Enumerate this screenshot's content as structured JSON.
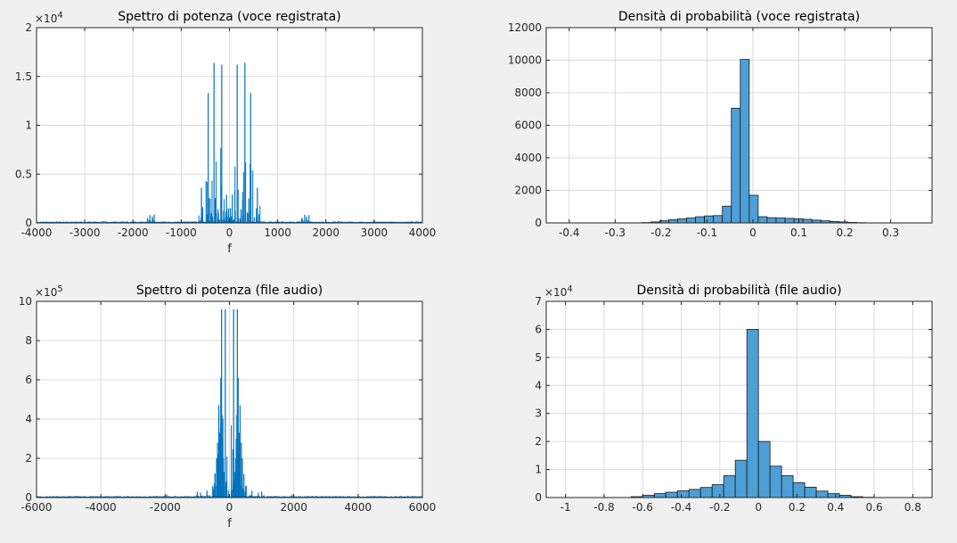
{
  "figure": {
    "background": "#f0f0f0",
    "axes_background": "#ffffff",
    "line_color": "#0072bd",
    "bar_face": "#4d9fd6",
    "bar_edge": "#1a1a1a",
    "grid_color": "#dcdcdc"
  },
  "chart_data": [
    {
      "id": "spectrum-voice",
      "type": "line",
      "title": "Spettro di potenza (voce registrata)",
      "xlabel": "f",
      "ylabel": "",
      "xlim": [
        -4000,
        4000
      ],
      "ylim": [
        0,
        20000
      ],
      "xticks": [
        -4000,
        -3000,
        -2000,
        -1000,
        0,
        1000,
        2000,
        3000,
        4000
      ],
      "yticks": [
        0,
        5000,
        10000,
        15000,
        20000
      ],
      "ytick_labels": [
        "0",
        "0.5",
        "1",
        "1.5",
        "2"
      ],
      "exponent_label": "×10",
      "exponent": "4",
      "grid": true,
      "peaks": [
        {
          "x": -1650,
          "y": 800
        },
        {
          "x": -1600,
          "y": 650
        },
        {
          "x": -1560,
          "y": 850
        },
        {
          "x": -1700,
          "y": 500
        },
        {
          "x": -580,
          "y": 3600
        },
        {
          "x": -560,
          "y": 1500
        },
        {
          "x": -440,
          "y": 13300
        },
        {
          "x": -400,
          "y": 2500
        },
        {
          "x": -320,
          "y": 16400
        },
        {
          "x": -280,
          "y": 2300
        },
        {
          "x": -240,
          "y": 1400
        },
        {
          "x": -160,
          "y": 16200
        },
        {
          "x": -120,
          "y": 1200
        },
        {
          "x": -60,
          "y": 2900
        },
        {
          "x": -20,
          "y": 1500
        },
        {
          "x": 20,
          "y": 1500
        },
        {
          "x": 60,
          "y": 2900
        },
        {
          "x": 120,
          "y": 1200
        },
        {
          "x": 160,
          "y": 16200
        },
        {
          "x": 240,
          "y": 1400
        },
        {
          "x": 280,
          "y": 2300
        },
        {
          "x": 320,
          "y": 16400
        },
        {
          "x": 400,
          "y": 2500
        },
        {
          "x": 440,
          "y": 13300
        },
        {
          "x": 560,
          "y": 1500
        },
        {
          "x": 580,
          "y": 3600
        },
        {
          "x": 1500,
          "y": 500
        },
        {
          "x": 1560,
          "y": 850
        },
        {
          "x": 1600,
          "y": 650
        },
        {
          "x": 1650,
          "y": 800
        }
      ]
    },
    {
      "id": "histogram-voice",
      "type": "bar",
      "title": "Densità di probabilità (voce registrata)",
      "xlabel": "",
      "ylabel": "",
      "xlim": [
        -0.45,
        0.39
      ],
      "ylim": [
        0,
        12000
      ],
      "xticks": [
        -0.4,
        -0.3,
        -0.2,
        -0.1,
        0,
        0.1,
        0.2,
        0.3
      ],
      "xtick_labels": [
        "-0.4",
        "-0.3",
        "-0.2",
        "-0.1",
        "0",
        "0.1",
        "0.2",
        "0.3"
      ],
      "yticks": [
        0,
        2000,
        4000,
        6000,
        8000,
        10000,
        12000
      ],
      "ytick_labels": [
        "0",
        "2000",
        "4000",
        "6000",
        "8000",
        "10000",
        "12000"
      ],
      "grid": true,
      "bin_edges": [
        -0.242,
        -0.2225,
        -0.203,
        -0.1835,
        -0.164,
        -0.1445,
        -0.125,
        -0.1055,
        -0.086,
        -0.0665,
        -0.047,
        -0.0275,
        -0.008,
        0.0115,
        0.031,
        0.0505,
        0.07,
        0.0895,
        0.109,
        0.1285,
        0.148,
        0.1675,
        0.187,
        0.2065,
        0.226,
        0.2455,
        0.265,
        0.2845
      ],
      "values": [
        20,
        60,
        130,
        200,
        250,
        300,
        380,
        430,
        450,
        1030,
        7050,
        10050,
        1700,
        380,
        320,
        300,
        280,
        260,
        220,
        170,
        130,
        90,
        60,
        30,
        15,
        5,
        2
      ]
    },
    {
      "id": "spectrum-file",
      "type": "line",
      "title": "Spettro di potenza (file audio)",
      "xlabel": "f",
      "ylabel": "",
      "xlim": [
        -6000,
        6000
      ],
      "ylim": [
        0,
        1000000
      ],
      "xticks": [
        -6000,
        -4000,
        -2000,
        0,
        2000,
        4000,
        6000
      ],
      "yticks": [
        0,
        200000,
        400000,
        600000,
        800000,
        1000000
      ],
      "ytick_labels": [
        "0",
        "2",
        "4",
        "6",
        "8",
        "10"
      ],
      "exponent_label": "×10",
      "exponent": "5",
      "grid": true,
      "peaks": [
        {
          "x": -1950,
          "y": 15000
        },
        {
          "x": -1000,
          "y": 30000
        },
        {
          "x": -900,
          "y": 25000
        },
        {
          "x": -700,
          "y": 35000
        },
        {
          "x": -520,
          "y": 60000
        },
        {
          "x": -450,
          "y": 120000
        },
        {
          "x": -400,
          "y": 200000
        },
        {
          "x": -370,
          "y": 280000
        },
        {
          "x": -330,
          "y": 470000
        },
        {
          "x": -300,
          "y": 330000
        },
        {
          "x": -270,
          "y": 610000
        },
        {
          "x": -245,
          "y": 960000
        },
        {
          "x": -230,
          "y": 420000
        },
        {
          "x": -210,
          "y": 300000
        },
        {
          "x": -190,
          "y": 200000
        },
        {
          "x": -170,
          "y": 130000
        },
        {
          "x": -130,
          "y": 960000
        },
        {
          "x": -110,
          "y": 80000
        },
        {
          "x": -90,
          "y": 40000
        },
        {
          "x": 90,
          "y": 40000
        },
        {
          "x": 110,
          "y": 80000
        },
        {
          "x": 130,
          "y": 960000
        },
        {
          "x": 170,
          "y": 130000
        },
        {
          "x": 190,
          "y": 200000
        },
        {
          "x": 210,
          "y": 300000
        },
        {
          "x": 230,
          "y": 420000
        },
        {
          "x": 245,
          "y": 960000
        },
        {
          "x": 270,
          "y": 610000
        },
        {
          "x": 300,
          "y": 330000
        },
        {
          "x": 330,
          "y": 470000
        },
        {
          "x": 370,
          "y": 280000
        },
        {
          "x": 400,
          "y": 200000
        },
        {
          "x": 450,
          "y": 120000
        },
        {
          "x": 520,
          "y": 60000
        },
        {
          "x": 700,
          "y": 35000
        },
        {
          "x": 900,
          "y": 25000
        },
        {
          "x": 1000,
          "y": 30000
        },
        {
          "x": 1950,
          "y": 15000
        }
      ]
    },
    {
      "id": "histogram-file",
      "type": "bar",
      "title": "Densità di probabilità (file audio)",
      "xlabel": "",
      "ylabel": "",
      "xlim": [
        -1.1,
        0.9
      ],
      "ylim": [
        0,
        70000
      ],
      "xticks": [
        -1,
        -0.8,
        -0.6,
        -0.4,
        -0.2,
        0,
        0.2,
        0.4,
        0.6,
        0.8
      ],
      "xtick_labels": [
        "-1",
        "-0.8",
        "-0.6",
        "-0.4",
        "-0.2",
        "0",
        "0.2",
        "0.4",
        "0.6",
        "0.8"
      ],
      "yticks": [
        0,
        10000,
        20000,
        30000,
        40000,
        50000,
        60000,
        70000
      ],
      "ytick_labels": [
        "0",
        "1",
        "2",
        "3",
        "4",
        "5",
        "6",
        "7"
      ],
      "exponent_label": "×10",
      "exponent": "4",
      "grid": true,
      "bin_edges": [
        -0.66,
        -0.6,
        -0.54,
        -0.48,
        -0.42,
        -0.36,
        -0.3,
        -0.24,
        -0.18,
        -0.12,
        -0.06,
        0.0,
        0.06,
        0.12,
        0.18,
        0.24,
        0.3,
        0.36,
        0.42,
        0.48,
        0.54,
        0.6
      ],
      "values": [
        300,
        800,
        1400,
        1900,
        2400,
        2900,
        3600,
        4600,
        7800,
        13300,
        60000,
        20000,
        11200,
        7800,
        5300,
        3700,
        2300,
        1400,
        800,
        300,
        100
      ]
    }
  ]
}
